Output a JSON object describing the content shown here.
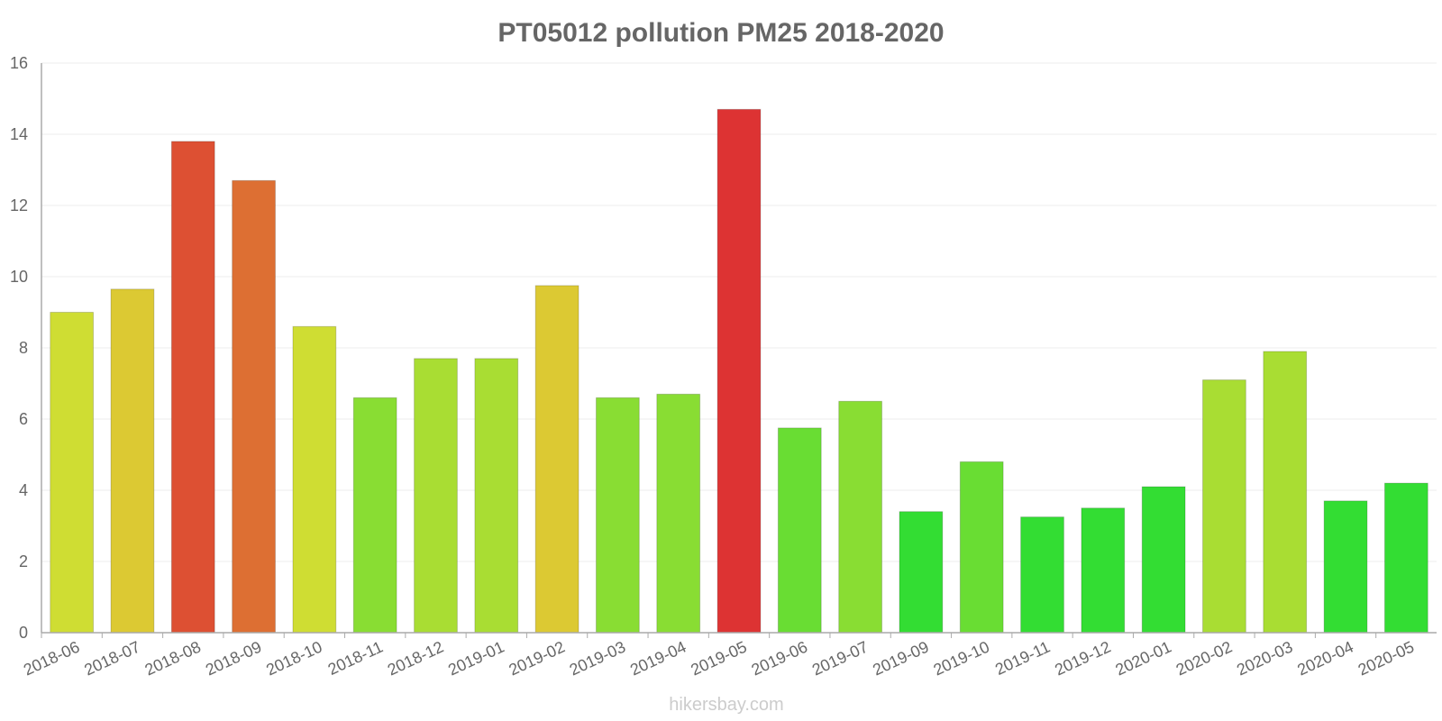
{
  "chart_data": {
    "type": "bar",
    "title": "PT05012 pollution PM25 2018-2020",
    "xlabel": "",
    "ylabel": "",
    "ylim": [
      0,
      16
    ],
    "yticks": [
      0,
      2,
      4,
      6,
      8,
      10,
      12,
      14,
      16
    ],
    "grid": true,
    "categories": [
      "2018-06",
      "2018-07",
      "2018-08",
      "2018-09",
      "2018-10",
      "2018-11",
      "2018-12",
      "2019-01",
      "2019-02",
      "2019-03",
      "2019-04",
      "2019-05",
      "2019-06",
      "2019-07",
      "2019-09",
      "2019-10",
      "2019-11",
      "2019-12",
      "2020-01",
      "2020-02",
      "2020-03",
      "2020-04",
      "2020-05"
    ],
    "values": [
      9.0,
      9.65,
      13.8,
      12.7,
      8.6,
      6.6,
      7.7,
      7.7,
      9.75,
      6.6,
      6.7,
      14.7,
      5.75,
      6.5,
      3.4,
      4.8,
      3.25,
      3.5,
      4.1,
      7.1,
      7.9,
      3.7,
      4.2
    ],
    "colors": [
      "#cfdd33",
      "#dcc933",
      "#dd5033",
      "#dd6f33",
      "#cfdd33",
      "#89dd33",
      "#a9dd33",
      "#a9dd33",
      "#dcc933",
      "#89dd33",
      "#89dd33",
      "#dd3333",
      "#69dd33",
      "#89dd33",
      "#33dd33",
      "#69dd33",
      "#33dd33",
      "#33dd33",
      "#33dd33",
      "#a9dd33",
      "#a9dd33",
      "#33dd33",
      "#33dd33"
    ]
  },
  "credit": "hikersbay.com"
}
